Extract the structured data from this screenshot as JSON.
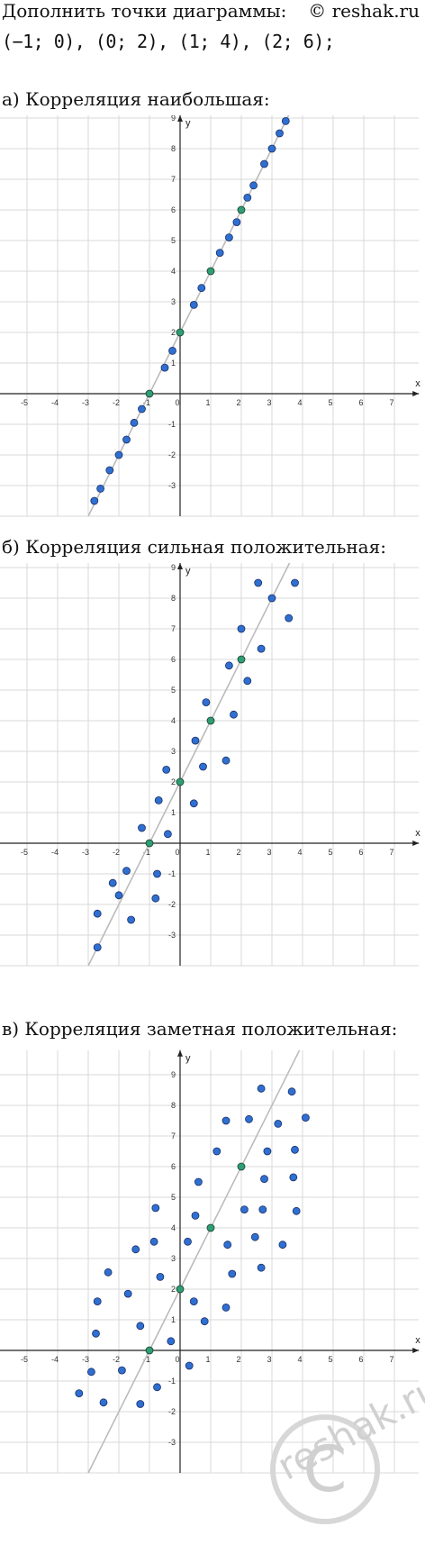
{
  "header": {
    "task": "Дополнить точки диаграммы:",
    "credit": "© reshak.ru",
    "points": "(−1; 0),  (0; 2),  (1; 4),  (2; 6);"
  },
  "watermark": {
    "text": "reshak.ru",
    "symbol": "C"
  },
  "charts": [
    {
      "title": "а) Корреляция наибольшая:",
      "xlabel": "x",
      "ylabel": "y"
    },
    {
      "title": "б) Корреляция сильная положительная:",
      "xlabel": "x",
      "ylabel": "y"
    },
    {
      "title": "в) Корреляция заметная положительная:",
      "xlabel": "x",
      "ylabel": "y"
    }
  ],
  "chart_data": [
    {
      "type": "scatter",
      "title": "а) Корреляция наибольшая:",
      "xlabel": "x",
      "ylabel": "y",
      "xlim": [
        -6,
        7.8
      ],
      "ylim": [
        -4,
        9.8
      ],
      "x_ticks": [
        -5,
        -4,
        -3,
        -2,
        -1,
        0,
        1,
        2,
        3,
        4,
        5,
        6,
        7
      ],
      "y_ticks": [
        -3,
        -2,
        -1,
        1,
        2,
        3,
        4,
        5,
        6,
        7,
        8,
        9
      ],
      "grid": true,
      "line": {
        "slope": 2,
        "intercept": 2,
        "color": "#bbbbbb"
      },
      "given_points": [
        [
          -1,
          0
        ],
        [
          0,
          2
        ],
        [
          1,
          4
        ],
        [
          2,
          6
        ]
      ],
      "points": [
        [
          -2.8,
          -3.5
        ],
        [
          -2.6,
          -3.1
        ],
        [
          -2.3,
          -2.5
        ],
        [
          -2.0,
          -2.0
        ],
        [
          -1.75,
          -1.5
        ],
        [
          -1.5,
          -0.95
        ],
        [
          -1.25,
          -0.5
        ],
        [
          -0.5,
          0.85
        ],
        [
          -0.25,
          1.4
        ],
        [
          0.45,
          2.9
        ],
        [
          0.7,
          3.45
        ],
        [
          1.3,
          4.6
        ],
        [
          1.6,
          5.1
        ],
        [
          1.85,
          5.6
        ],
        [
          2.2,
          6.4
        ],
        [
          2.4,
          6.8
        ],
        [
          2.75,
          7.5
        ],
        [
          3.0,
          8.0
        ],
        [
          3.25,
          8.5
        ],
        [
          3.45,
          8.9
        ]
      ],
      "colors": {
        "points": "#2f6fd1",
        "given": "#2e9e73",
        "line": "#bbbbbb"
      }
    },
    {
      "type": "scatter",
      "title": "б) Корреляция сильная положительная:",
      "xlabel": "x",
      "ylabel": "y",
      "xlim": [
        -6,
        7.8
      ],
      "ylim": [
        -4,
        9.8
      ],
      "x_ticks": [
        -5,
        -4,
        -3,
        -2,
        -1,
        0,
        1,
        2,
        3,
        4,
        5,
        6,
        7
      ],
      "y_ticks": [
        -3,
        -2,
        -1,
        1,
        2,
        3,
        4,
        5,
        6,
        7,
        8,
        9
      ],
      "grid": true,
      "line": {
        "slope": 2,
        "intercept": 2,
        "color": "#bbbbbb"
      },
      "given_points": [
        [
          -1,
          0
        ],
        [
          0,
          2
        ],
        [
          1,
          4
        ],
        [
          2,
          6
        ]
      ],
      "points": [
        [
          -2.7,
          -3.4
        ],
        [
          -2.7,
          -2.3
        ],
        [
          -2.2,
          -1.3
        ],
        [
          -1.75,
          -0.9
        ],
        [
          -2.0,
          -1.7
        ],
        [
          -1.6,
          -2.5
        ],
        [
          -1.25,
          0.5
        ],
        [
          -0.7,
          1.4
        ],
        [
          -0.75,
          -1.0
        ],
        [
          -0.8,
          -1.8
        ],
        [
          -0.4,
          0.3
        ],
        [
          -0.45,
          2.4
        ],
        [
          0.45,
          1.3
        ],
        [
          0.5,
          3.35
        ],
        [
          0.75,
          2.5
        ],
        [
          0.85,
          4.6
        ],
        [
          1.5,
          2.7
        ],
        [
          1.6,
          5.8
        ],
        [
          1.75,
          4.2
        ],
        [
          2.0,
          7.0
        ],
        [
          2.2,
          5.3
        ],
        [
          2.55,
          8.5
        ],
        [
          2.65,
          6.35
        ],
        [
          3.0,
          8.0
        ],
        [
          3.55,
          7.35
        ],
        [
          3.75,
          8.5
        ]
      ],
      "colors": {
        "points": "#2f6fd1",
        "given": "#2e9e73",
        "line": "#bbbbbb"
      }
    },
    {
      "type": "scatter",
      "title": "в) Корреляция заметная положительная:",
      "xlabel": "x",
      "ylabel": "y",
      "xlim": [
        -6,
        7.8
      ],
      "ylim": [
        -4,
        9.8
      ],
      "x_ticks": [
        -5,
        -4,
        -3,
        -2,
        -1,
        0,
        1,
        2,
        3,
        4,
        5,
        6,
        7
      ],
      "y_ticks": [
        -3,
        -2,
        -1,
        1,
        2,
        3,
        4,
        5,
        6,
        7,
        8,
        9
      ],
      "grid": true,
      "line": {
        "slope": 2,
        "intercept": 2,
        "color": "#bbbbbb"
      },
      "given_points": [
        [
          -1,
          0
        ],
        [
          0,
          2
        ],
        [
          1,
          4
        ],
        [
          2,
          6
        ]
      ],
      "points": [
        [
          -3.3,
          -1.4
        ],
        [
          -2.9,
          -0.7
        ],
        [
          -2.5,
          -1.7
        ],
        [
          -2.75,
          0.55
        ],
        [
          -2.7,
          1.6
        ],
        [
          -2.35,
          2.55
        ],
        [
          -1.9,
          -0.65
        ],
        [
          -1.7,
          1.85
        ],
        [
          -1.45,
          3.3
        ],
        [
          -1.3,
          0.8
        ],
        [
          -1.3,
          -1.75
        ],
        [
          -0.75,
          -1.2
        ],
        [
          -0.85,
          3.55
        ],
        [
          -0.8,
          4.65
        ],
        [
          -0.65,
          2.4
        ],
        [
          -0.3,
          0.3
        ],
        [
          0.3,
          -0.5
        ],
        [
          0.25,
          3.55
        ],
        [
          0.45,
          1.6
        ],
        [
          0.5,
          4.4
        ],
        [
          0.6,
          5.5
        ],
        [
          0.8,
          0.95
        ],
        [
          1.2,
          6.5
        ],
        [
          1.5,
          7.5
        ],
        [
          1.5,
          1.4
        ],
        [
          1.55,
          3.45
        ],
        [
          1.7,
          2.5
        ],
        [
          2.1,
          4.6
        ],
        [
          2.25,
          7.55
        ],
        [
          2.45,
          3.7
        ],
        [
          2.65,
          2.7
        ],
        [
          2.65,
          8.55
        ],
        [
          2.7,
          4.6
        ],
        [
          2.75,
          5.6
        ],
        [
          2.85,
          6.5
        ],
        [
          3.2,
          7.4
        ],
        [
          3.35,
          3.45
        ],
        [
          3.65,
          8.45
        ],
        [
          3.7,
          5.65
        ],
        [
          3.75,
          6.55
        ],
        [
          3.8,
          4.55
        ],
        [
          4.1,
          7.6
        ]
      ],
      "colors": {
        "points": "#2f6fd1",
        "given": "#2e9e73",
        "line": "#bbbbbb"
      }
    }
  ]
}
